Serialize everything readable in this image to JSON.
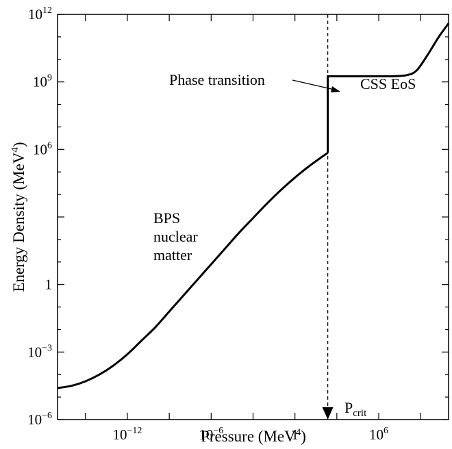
{
  "chart_data": {
    "type": "line",
    "xlabel": "Pressure (MeV",
    "xlabel_sup": "4",
    "xlabel_tail": ")",
    "ylabel": "Energy Density (MeV",
    "ylabel_sup": "4",
    "ylabel_tail": ")",
    "x_scale": "log10",
    "y_scale": "log10",
    "xlim_log10": [
      -17,
      11
    ],
    "ylim_log10": [
      -6,
      12
    ],
    "x_ticks": [
      {
        "exp": -12,
        "base": "10",
        "sup": "−12"
      },
      {
        "exp": -6,
        "base": "10",
        "sup": "−6"
      },
      {
        "exp": 0,
        "base": "1",
        "sup": ""
      },
      {
        "exp": 6,
        "base": "10",
        "sup": "6"
      }
    ],
    "y_ticks": [
      {
        "exp": -6,
        "base": "10",
        "sup": "−6"
      },
      {
        "exp": -3,
        "base": "10",
        "sup": "−3"
      },
      {
        "exp": 0,
        "base": "1",
        "sup": ""
      },
      {
        "exp": 6,
        "base": "10",
        "sup": "6"
      },
      {
        "exp": 9,
        "base": "10",
        "sup": "9"
      },
      {
        "exp": 12,
        "base": "10",
        "sup": "12"
      }
    ],
    "series": [
      {
        "segment": "BPS",
        "points_log10": [
          [
            -17,
            -4.6
          ],
          [
            -16,
            -4.5
          ],
          [
            -15,
            -4.3
          ],
          [
            -14,
            -4.0
          ],
          [
            -13,
            -3.6
          ],
          [
            -12,
            -3.1
          ],
          [
            -11,
            -2.5
          ],
          [
            -10,
            -1.9
          ],
          [
            -9,
            -1.2
          ],
          [
            -8,
            -0.5
          ],
          [
            -7,
            0.2
          ],
          [
            -6,
            0.9
          ],
          [
            -5,
            1.6
          ],
          [
            -4,
            2.3
          ],
          [
            -3,
            2.95
          ],
          [
            -2,
            3.6
          ],
          [
            -1,
            4.2
          ],
          [
            0,
            4.75
          ],
          [
            1,
            5.25
          ],
          [
            2,
            5.7
          ],
          [
            2.35,
            5.85
          ]
        ]
      },
      {
        "segment": "CSS",
        "points_log10": [
          [
            2.35,
            5.85
          ],
          [
            2.35,
            9.25
          ],
          [
            7,
            9.25
          ],
          [
            8,
            9.3
          ],
          [
            8.7,
            9.5
          ],
          [
            9.5,
            10.2
          ],
          [
            10.3,
            11.0
          ],
          [
            11,
            11.6
          ]
        ]
      }
    ],
    "p_crit_log10": 2.35,
    "annotations": {
      "phase_transition": "Phase transition",
      "css_eos": "CSS EoS",
      "bps_line1": "BPS",
      "bps_line2": "nuclear",
      "bps_line3": "matter",
      "pcrit_main": "P",
      "pcrit_sub": "crit"
    },
    "grid": false,
    "legend": "none"
  }
}
